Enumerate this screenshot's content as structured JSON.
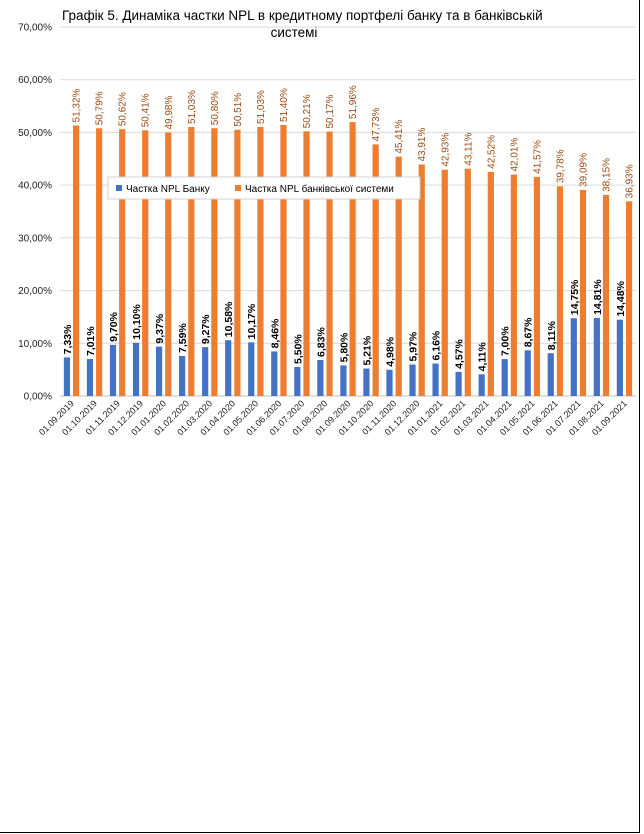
{
  "title_line1": "Графік 5. Динаміка частки NPL в кредитному портфелі банку та в банківській",
  "title_line2": "системі",
  "colors": {
    "bank": "#4472c4",
    "system": "#ed7d31",
    "grid": "#d9d9d9"
  },
  "chart_data": {
    "type": "bar",
    "title": "Графік 5. Динаміка частки NPL в кредитному портфелі банку та в банківській системі",
    "xlabel": "",
    "ylabel": "",
    "ylim": [
      0,
      70
    ],
    "yticks": [
      "0,00%",
      "10,00%",
      "20,00%",
      "30,00%",
      "40,00%",
      "50,00%",
      "60,00%",
      "70,00%"
    ],
    "grid": true,
    "legend_position": "middle-left",
    "categories": [
      "01.09.2019",
      "01.10.2019",
      "01.11.2019",
      "01.12.2019",
      "01.01.2020",
      "01.02.2020",
      "01.03.2020",
      "01.04.2020",
      "01.05.2020",
      "01.06.2020",
      "01.07.2020",
      "01.08.2020",
      "01.09.2020",
      "01.10.2020",
      "01.11.2020",
      "01.12.2020",
      "01.01.2021",
      "01.02.2021",
      "01.03.2021",
      "01.04.2021",
      "01.05.2021",
      "01.06.2021",
      "01.07.2021",
      "01.08.2021",
      "01.09.2021"
    ],
    "series": [
      {
        "name": "Частка NPL Банку",
        "values": [
          7.33,
          7.01,
          9.7,
          10.1,
          9.37,
          7.59,
          9.27,
          10.58,
          10.17,
          8.46,
          5.5,
          6.83,
          5.8,
          5.21,
          4.98,
          5.97,
          6.16,
          4.57,
          4.11,
          7.0,
          8.67,
          8.11,
          14.75,
          14.81,
          14.48
        ],
        "labels": [
          "7,33%",
          "7,01%",
          "9,70%",
          "10,10%",
          "9,37%",
          "7,59%",
          "9,27%",
          "10,58%",
          "10,17%",
          "8,46%",
          "5,50%",
          "6,83%",
          "5,80%",
          "5,21%",
          "4,98%",
          "5,97%",
          "6,16%",
          "4,57%",
          "4,11%",
          "7,00%",
          "8,67%",
          "8,11%",
          "14,75%",
          "14,81%",
          "14,48%"
        ]
      },
      {
        "name": "Частка NPL банківської системи",
        "values": [
          51.32,
          50.79,
          50.62,
          50.41,
          49.98,
          51.03,
          50.8,
          50.51,
          51.03,
          51.4,
          50.21,
          50.17,
          51.96,
          47.73,
          45.41,
          43.91,
          42.93,
          43.11,
          42.52,
          42.01,
          41.57,
          39.78,
          39.09,
          38.15,
          36.93
        ],
        "labels": [
          "51,32%",
          "50,79%",
          "50,62%",
          "50,41%",
          "49,98%",
          "51,03%",
          "50,80%",
          "50,51%",
          "51,03%",
          "51,40%",
          "50,21%",
          "50,17%",
          "51,96%",
          "47,73%",
          "45,41%",
          "43,91%",
          "42,93%",
          "43,11%",
          "42,52%",
          "42,01%",
          "41,57%",
          "39,78%",
          "39,09%",
          "38,15%",
          "36,93%"
        ]
      }
    ]
  }
}
